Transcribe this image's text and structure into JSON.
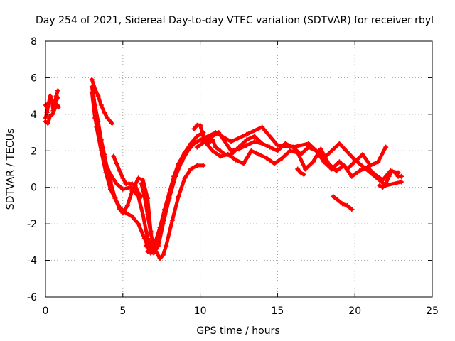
{
  "chart_data": {
    "type": "scatter",
    "title": "Day 254 of 2021, Sidereal Day-to-day VTEC variation (SDTVAR) for receiver rbyl",
    "xlabel": "GPS time / hours",
    "ylabel": "SDTVAR / TECUs",
    "xlim": [
      0,
      25
    ],
    "ylim": [
      -6,
      8
    ],
    "xticks": [
      "0",
      "5",
      "10",
      "15",
      "20",
      "25"
    ],
    "yticks": [
      "-6",
      "-4",
      "-2",
      "0",
      "2",
      "4",
      "6",
      "8"
    ],
    "grid": true,
    "marker": "plus",
    "color": "#ff0000",
    "series": [
      {
        "name": "s1",
        "x": [
          0,
          0.1,
          0.2,
          0.3,
          0.4,
          0.5,
          0.6,
          0.7,
          0.8
        ],
        "y": [
          3.8,
          4.1,
          4.6,
          5.0,
          4.8,
          4.2,
          4.6,
          5.0,
          5.3
        ]
      },
      {
        "name": "s2",
        "x": [
          0,
          0.15,
          0.3,
          0.45,
          0.6,
          0.75,
          0.85
        ],
        "y": [
          3.6,
          3.5,
          3.9,
          4.0,
          4.3,
          4.5,
          4.4
        ]
      },
      {
        "name": "s3",
        "x": [
          0,
          0.2,
          0.4,
          0.6,
          0.8
        ],
        "y": [
          4.5,
          4.6,
          4.7,
          4.6,
          4.9
        ]
      },
      {
        "name": "s4",
        "x": [
          3.0,
          3.2,
          3.4,
          3.6,
          3.8,
          4.0,
          4.2,
          4.3
        ],
        "y": [
          5.9,
          5.4,
          5.0,
          4.5,
          4.1,
          3.8,
          3.6,
          3.5
        ]
      },
      {
        "name": "s5",
        "x": [
          3.0,
          3.2,
          3.4,
          3.6,
          3.8,
          4.0,
          4.2,
          4.5,
          4.8,
          5.0,
          5.3,
          5.6,
          6.0,
          6.3,
          6.6,
          6.8
        ],
        "y": [
          5.5,
          4.5,
          3.6,
          2.6,
          1.8,
          1.0,
          0.3,
          -0.6,
          -1.2,
          -1.4,
          -1.0,
          -0.2,
          0.5,
          0.4,
          -0.6,
          -2.4
        ]
      },
      {
        "name": "s6",
        "x": [
          3.0,
          3.2,
          3.5,
          3.8,
          4.2,
          4.6,
          5.0,
          5.5,
          6.0,
          6.3,
          6.6,
          6.9,
          7.2
        ],
        "y": [
          5.2,
          3.8,
          2.6,
          1.5,
          0.7,
          0.2,
          -0.1,
          0.0,
          -0.5,
          -1.5,
          -2.8,
          -3.3,
          -3.0
        ]
      },
      {
        "name": "s7",
        "x": [
          3.1,
          3.3,
          3.6,
          3.9,
          4.2,
          4.5,
          4.8,
          5.2,
          5.6,
          6.0,
          6.4,
          6.8,
          7.0
        ],
        "y": [
          4.8,
          3.3,
          2.0,
          0.8,
          -0.1,
          -0.6,
          -1.1,
          -1.4,
          -1.6,
          -2.0,
          -2.8,
          -3.6,
          -3.4
        ]
      },
      {
        "name": "s8",
        "x": [
          4.4,
          4.6,
          4.8,
          5.0,
          5.2,
          5.4,
          5.6,
          5.8,
          6.0,
          6.2
        ],
        "y": [
          1.7,
          1.3,
          0.9,
          0.5,
          0.2,
          0.2,
          0.2,
          0.1,
          -0.3,
          -0.5
        ]
      },
      {
        "name": "s9",
        "x": [
          6.2,
          6.4,
          6.6,
          6.8,
          7.0,
          7.2,
          7.4,
          7.6,
          7.8,
          8.2,
          8.6,
          9.0,
          9.4,
          9.8,
          10.2
        ],
        "y": [
          0.2,
          -0.5,
          -1.5,
          -2.5,
          -3.3,
          -3.6,
          -3.9,
          -3.7,
          -3.2,
          -1.8,
          -0.5,
          0.5,
          1.0,
          1.2,
          1.2
        ]
      },
      {
        "name": "s10",
        "x": [
          6.5,
          6.8,
          7.1,
          7.4,
          7.7,
          8.0,
          8.3,
          8.6,
          9.0,
          9.4,
          9.8,
          10.2
        ],
        "y": [
          -3.2,
          -3.4,
          -3.0,
          -2.2,
          -1.2,
          -0.3,
          0.6,
          1.3,
          1.9,
          2.4,
          2.8,
          3.0
        ]
      },
      {
        "name": "s11",
        "x": [
          6.6,
          7.0,
          7.3,
          7.6,
          8.0,
          8.4,
          8.8,
          9.2,
          9.6,
          10.0,
          10.4,
          10.8,
          11.2,
          11.6,
          12.0,
          12.5,
          13.0,
          13.5,
          14.0
        ],
        "y": [
          -3.5,
          -3.6,
          -3.2,
          -2.0,
          -0.6,
          0.6,
          1.4,
          2.0,
          2.4,
          2.6,
          2.5,
          2.8,
          3.0,
          2.5,
          2.0,
          2.1,
          2.3,
          2.5,
          2.4
        ]
      },
      {
        "name": "s12",
        "x": [
          9.6,
          9.8,
          10.0,
          10.2,
          10.5,
          10.8,
          11.0,
          11.3,
          11.6,
          12.0,
          12.5,
          13.0,
          13.5,
          14.0,
          14.5,
          15.0,
          15.5,
          16.0,
          16.5,
          17.0,
          17.5,
          18.0,
          18.5,
          19.0,
          19.5,
          20.0,
          20.5,
          21.0,
          21.5,
          22.0
        ],
        "y": [
          3.2,
          3.4,
          3.4,
          2.8,
          2.4,
          2.6,
          2.2,
          2.0,
          1.8,
          1.8,
          2.2,
          2.6,
          2.8,
          2.4,
          2.2,
          2.0,
          2.4,
          2.2,
          1.8,
          2.2,
          2.0,
          1.4,
          1.0,
          1.4,
          1.0,
          1.4,
          1.8,
          1.2,
          1.4,
          2.2
        ]
      },
      {
        "name": "s13",
        "x": [
          9.8,
          10.3,
          10.8,
          11.3,
          11.8,
          12.3,
          12.8,
          13.3,
          13.8,
          14.3,
          14.8,
          15.3,
          15.8,
          16.3,
          16.8,
          17.3,
          17.8,
          18.3,
          18.8,
          19.3,
          19.8,
          20.3,
          20.8,
          21.3,
          21.8,
          22.3,
          22.8
        ],
        "y": [
          2.2,
          2.5,
          2.0,
          1.7,
          1.8,
          1.5,
          1.3,
          2.0,
          1.8,
          1.6,
          1.3,
          1.6,
          2.0,
          1.9,
          1.0,
          1.4,
          2.1,
          1.3,
          0.9,
          1.2,
          0.6,
          0.9,
          1.1,
          0.7,
          0.4,
          0.9,
          0.8
        ]
      },
      {
        "name": "s14",
        "x": [
          10.0,
          11.0,
          12.0,
          13.0,
          14.0,
          15.0,
          16.0,
          17.0,
          18.0,
          19.0,
          20.0,
          21.0,
          22.0,
          23.0
        ],
        "y": [
          2.6,
          3.0,
          2.5,
          2.9,
          3.3,
          2.3,
          2.2,
          2.4,
          1.6,
          2.4,
          1.5,
          0.8,
          0.1,
          0.3
        ]
      },
      {
        "name": "s15",
        "x": [
          16.3,
          16.5,
          16.7
        ],
        "y": [
          1.0,
          0.8,
          0.7
        ]
      },
      {
        "name": "s16",
        "x": [
          18.6,
          18.9,
          19.2,
          19.5,
          19.8
        ],
        "y": [
          -0.5,
          -0.7,
          -0.9,
          -1.0,
          -1.2
        ]
      },
      {
        "name": "s17",
        "x": [
          21.6,
          21.8,
          22.0,
          22.2,
          22.4,
          22.6,
          22.8,
          23.0
        ],
        "y": [
          0.1,
          0.0,
          0.2,
          0.6,
          0.9,
          0.8,
          0.6,
          0.6
        ]
      }
    ]
  }
}
